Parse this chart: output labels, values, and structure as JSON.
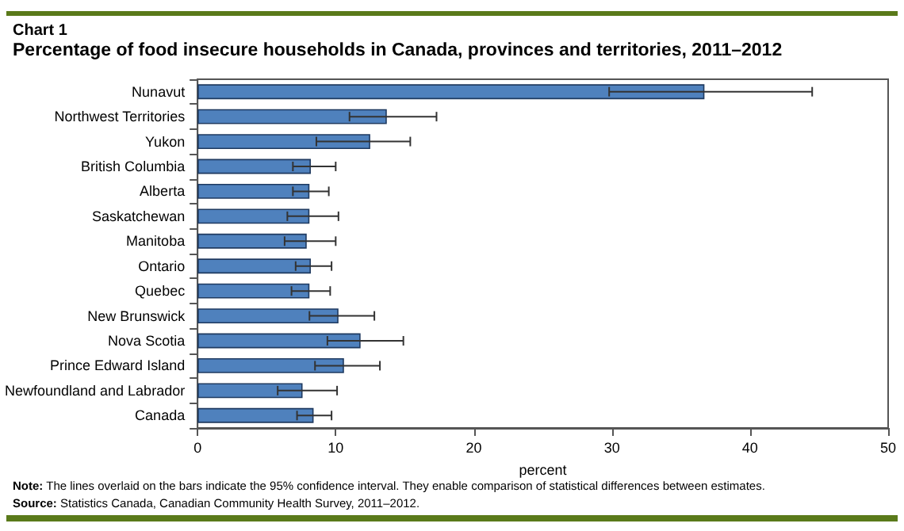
{
  "chart_data": {
    "type": "bar",
    "orientation": "horizontal",
    "title": "Chart 1",
    "subtitle": "Percentage of food insecure households in Canada, provinces and territories, 2011–2012",
    "categories": [
      "Nunavut",
      "Northwest Territories",
      "Yukon",
      "British Columbia",
      "Alberta",
      "Saskatchewan",
      "Manitoba",
      "Ontario",
      "Quebec",
      "New Brunswick",
      "Nova Scotia",
      "Prince Edward Island",
      "Newfoundland and Labrador",
      "Canada"
    ],
    "values": [
      36.7,
      13.7,
      12.5,
      8.2,
      8.1,
      8.1,
      7.9,
      8.2,
      8.1,
      10.2,
      11.8,
      10.6,
      7.6,
      8.4
    ],
    "errors": [
      [
        29.8,
        44.5
      ],
      [
        11.0,
        17.3
      ],
      [
        8.6,
        15.4
      ],
      [
        6.9,
        10.0
      ],
      [
        6.9,
        9.5
      ],
      [
        6.5,
        10.2
      ],
      [
        6.3,
        10.0
      ],
      [
        7.1,
        9.7
      ],
      [
        6.8,
        9.6
      ],
      [
        8.1,
        12.8
      ],
      [
        9.4,
        14.9
      ],
      [
        8.5,
        13.2
      ],
      [
        5.8,
        10.1
      ],
      [
        7.2,
        9.7
      ]
    ],
    "color": "#4f81bd",
    "xlim": [
      0,
      50
    ],
    "xticks": [
      0,
      10,
      20,
      30,
      40,
      50
    ],
    "xlabel": "percent",
    "grid": false,
    "annotations": [
      "Note: The lines overlaid on the bars indicate the 95% confidence interval. They enable comparison of statistical differences between estimates.",
      "Source: Statistics Canada, Canadian Community Health Survey, 2011–2012."
    ]
  }
}
